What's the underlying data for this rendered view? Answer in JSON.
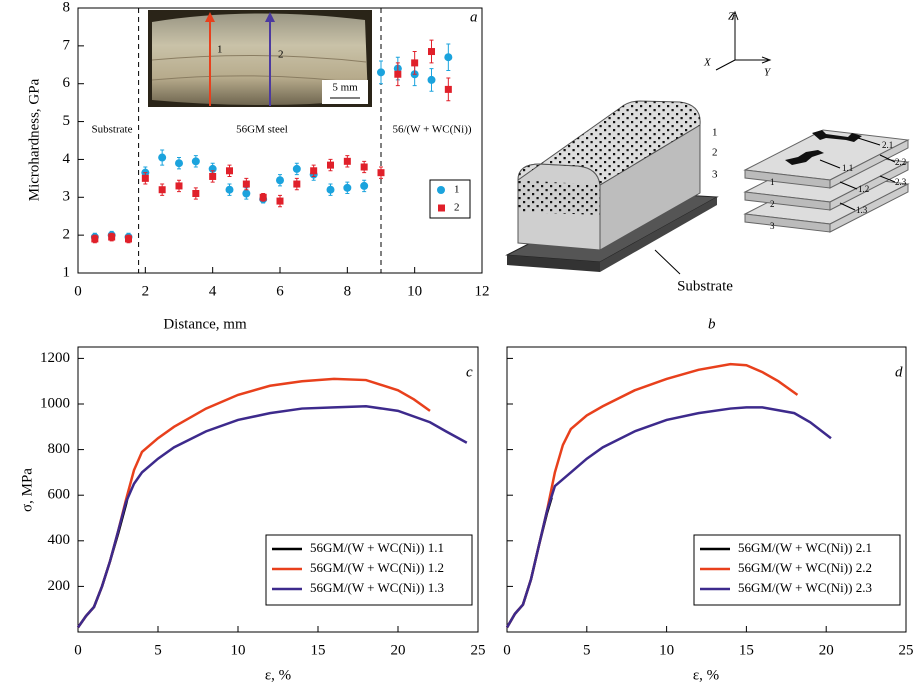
{
  "chart_data": [
    {
      "type": "scatter",
      "panel_label": "a",
      "x_label": "Distance, mm",
      "y_label": "Microhardness, GPa",
      "xlim": [
        0,
        12
      ],
      "xticks": [
        0,
        2,
        4,
        6,
        8,
        10,
        12
      ],
      "ylim": [
        1,
        8
      ],
      "yticks": [
        1,
        2,
        3,
        4,
        5,
        6,
        7,
        8
      ],
      "zone_boundaries": [
        1.8,
        9
      ],
      "annotations": [
        "Substrate",
        "56GM steel",
        "56/(W + WC(Ni))"
      ],
      "inset": {
        "arrow_labels": [
          "1",
          "2"
        ],
        "scale_bar": "5 mm"
      },
      "legend": "center right",
      "x": [
        0.5,
        1,
        1.5,
        2,
        2.5,
        3,
        3.5,
        4,
        4.5,
        5,
        5.5,
        6,
        6.5,
        7,
        7.5,
        8,
        8.5,
        9,
        9.5,
        10,
        10.5,
        11
      ],
      "series": [
        {
          "name": "1",
          "color": "#1ba3dd",
          "marker": "circle",
          "values": [
            1.95,
            2.0,
            1.95,
            3.65,
            4.05,
            3.9,
            3.95,
            3.75,
            3.2,
            3.1,
            2.95,
            3.45,
            3.75,
            3.6,
            3.2,
            3.25,
            3.3,
            6.3,
            6.4,
            6.25,
            6.1,
            6.7
          ],
          "errors": [
            0.1,
            0.1,
            0.1,
            0.15,
            0.2,
            0.15,
            0.15,
            0.15,
            0.15,
            0.15,
            0.1,
            0.15,
            0.15,
            0.15,
            0.15,
            0.15,
            0.15,
            0.3,
            0.3,
            0.3,
            0.3,
            0.35
          ]
        },
        {
          "name": "2",
          "color": "#e0202a",
          "marker": "square",
          "values": [
            1.9,
            1.95,
            1.9,
            3.5,
            3.2,
            3.3,
            3.1,
            3.55,
            3.7,
            3.35,
            3.0,
            2.9,
            3.35,
            3.7,
            3.85,
            3.95,
            3.8,
            3.65,
            6.25,
            6.55,
            6.85,
            5.85
          ],
          "errors": [
            0.1,
            0.1,
            0.1,
            0.15,
            0.15,
            0.15,
            0.15,
            0.15,
            0.15,
            0.15,
            0.1,
            0.15,
            0.15,
            0.15,
            0.15,
            0.15,
            0.15,
            0.15,
            0.3,
            0.3,
            0.3,
            0.3
          ]
        }
      ]
    },
    {
      "type": "line",
      "panel_label": "c",
      "x_label": "ε, %",
      "y_label": "σ, MPa",
      "xlim": [
        0,
        25
      ],
      "xticks": [
        0,
        5,
        10,
        15,
        20,
        25
      ],
      "ylim": [
        0,
        1250
      ],
      "yticks": [
        200,
        400,
        600,
        800,
        1000,
        1200
      ],
      "show_ytick_labels": true,
      "legend": "lower right",
      "series": [
        {
          "name": "56GM/(W + WC(Ni)) 1.1",
          "color": "#000000",
          "x": [
            0,
            0.5,
            1,
            1.5,
            2,
            2.5,
            3,
            3.2
          ],
          "values": [
            20,
            70,
            110,
            200,
            310,
            430,
            560,
            620
          ]
        },
        {
          "name": "56GM/(W + WC(Ni)) 1.2",
          "color": "#e8401c",
          "x": [
            0,
            0.5,
            1,
            1.5,
            2,
            2.5,
            3,
            3.5,
            4,
            5,
            6,
            8,
            10,
            12,
            14,
            16,
            18,
            20,
            21,
            22
          ],
          "values": [
            20,
            70,
            110,
            200,
            310,
            440,
            580,
            710,
            790,
            850,
            900,
            980,
            1040,
            1080,
            1100,
            1110,
            1105,
            1060,
            1020,
            970
          ]
        },
        {
          "name": "56GM/(W + WC(Ni)) 1.3",
          "color": "#3d2a8c",
          "x": [
            0,
            0.5,
            1,
            1.5,
            2,
            2.5,
            3,
            3.5,
            4,
            5,
            6,
            8,
            10,
            12,
            14,
            16,
            18,
            20,
            22,
            23,
            24.3
          ],
          "values": [
            20,
            70,
            110,
            200,
            310,
            440,
            570,
            650,
            700,
            760,
            810,
            880,
            930,
            960,
            980,
            985,
            990,
            970,
            920,
            880,
            830
          ]
        }
      ]
    },
    {
      "type": "line",
      "panel_label": "d",
      "x_label": "ε, %",
      "xlim": [
        0,
        25
      ],
      "xticks": [
        0,
        5,
        10,
        15,
        20,
        25
      ],
      "ylim": [
        0,
        1250
      ],
      "yticks": [
        200,
        400,
        600,
        800,
        1000,
        1200
      ],
      "show_ytick_labels": false,
      "legend": "lower right",
      "series": [
        {
          "name": "56GM/(W + WC(Ni)) 2.1",
          "color": "#000000",
          "x": [
            0,
            0.5,
            1,
            1.5,
            2,
            2.5,
            2.8
          ],
          "values": [
            20,
            80,
            120,
            230,
            380,
            520,
            590
          ]
        },
        {
          "name": "56GM/(W + WC(Ni)) 2.2",
          "color": "#e8401c",
          "x": [
            0,
            0.5,
            1,
            1.5,
            2,
            2.5,
            3,
            3.5,
            4,
            5,
            6,
            8,
            10,
            12,
            14,
            15,
            16,
            17,
            18.2
          ],
          "values": [
            20,
            80,
            120,
            230,
            380,
            530,
            700,
            820,
            890,
            950,
            990,
            1060,
            1110,
            1150,
            1175,
            1170,
            1140,
            1100,
            1040
          ]
        },
        {
          "name": "56GM/(W + WC(Ni)) 2.3",
          "color": "#3d2a8c",
          "x": [
            0,
            0.5,
            1,
            1.5,
            2,
            2.5,
            3,
            4,
            5,
            6,
            8,
            10,
            12,
            14,
            15,
            16,
            18,
            19,
            20.3
          ],
          "values": [
            20,
            80,
            120,
            230,
            380,
            530,
            640,
            700,
            760,
            810,
            880,
            930,
            960,
            980,
            985,
            985,
            960,
            920,
            850
          ]
        }
      ]
    }
  ],
  "diagram": {
    "axes": [
      "Z",
      "X",
      "Y"
    ],
    "block_layers": [
      "1",
      "2",
      "3"
    ],
    "substrate": "Substrate",
    "sample_labels": [
      "2.1",
      "1.1",
      "2.2",
      "1.2",
      "2.3",
      "1.3"
    ],
    "plate_labels": [
      "1",
      "2",
      "3"
    ],
    "panel_label": "b"
  }
}
